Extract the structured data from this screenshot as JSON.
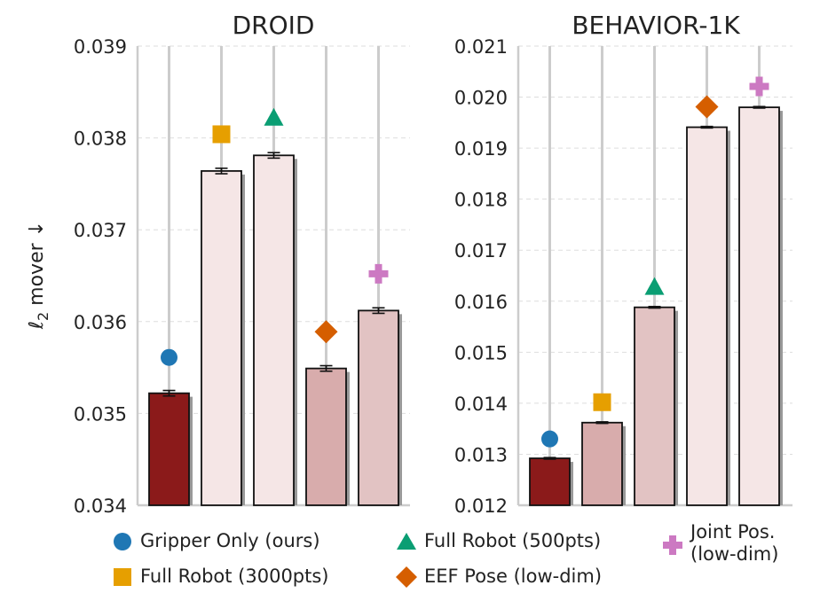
{
  "y_label_main": "mover",
  "y_label_sub": "2",
  "y_label_arrow": "↓",
  "chart_data": [
    {
      "type": "bar",
      "title": "DROID",
      "ylim": [
        0.034,
        0.039
      ],
      "yticks": [
        "0.034",
        "0.035",
        "0.036",
        "0.037",
        "0.038",
        "0.039"
      ],
      "ytick_values": [
        0.034,
        0.035,
        0.036,
        0.037,
        0.038,
        0.039
      ],
      "grid": true,
      "categories": [
        "Gripper Only (ours)",
        "Full Robot (3000pts)",
        "Full Robot (500pts)",
        "EEF Pose (low-dim)",
        "Joint Pos. (low-dim)"
      ],
      "values": [
        0.03522,
        0.03764,
        0.03781,
        0.03549,
        0.03612
      ],
      "errors": [
        3e-05,
        3e-05,
        3e-05,
        3e-05,
        3e-05
      ],
      "marker_values": [
        0.03561,
        0.03804,
        0.03822,
        0.03589,
        0.03652
      ],
      "bar_colors": [
        "#8b1a1a",
        "#f5e6e6",
        "#f5e6e6",
        "#d8acac",
        "#e2c3c3"
      ]
    },
    {
      "type": "bar",
      "title": "BEHAVIOR-1K",
      "ylim": [
        0.012,
        0.021
      ],
      "yticks": [
        "0.012",
        "0.013",
        "0.014",
        "0.015",
        "0.016",
        "0.017",
        "0.018",
        "0.019",
        "0.020",
        "0.021"
      ],
      "ytick_values": [
        0.012,
        0.013,
        0.014,
        0.015,
        0.016,
        0.017,
        0.018,
        0.019,
        0.02,
        0.021
      ],
      "grid": true,
      "categories": [
        "Gripper Only (ours)",
        "Full Robot (3000pts)",
        "Full Robot (500pts)",
        "EEF Pose (low-dim)",
        "Joint Pos. (low-dim)"
      ],
      "values": [
        0.01292,
        0.01362,
        0.01588,
        0.01941,
        0.0198
      ],
      "errors": [
        1.5e-05,
        1.5e-05,
        1.5e-05,
        1.5e-05,
        1.5e-05
      ],
      "marker_values": [
        0.0133,
        0.01402,
        0.01628,
        0.01981,
        0.02021
      ],
      "bar_colors": [
        "#8b1a1a",
        "#d8acac",
        "#e2c3c3",
        "#f5e6e6",
        "#f5e6e6"
      ]
    }
  ],
  "legend": [
    {
      "label": "Gripper Only (ours)",
      "marker": "circle",
      "color": "#1f77b4"
    },
    {
      "label": "Full Robot (500pts)",
      "marker": "triangle",
      "color": "#0a9e73"
    },
    {
      "label": "Joint Pos.\n(low-dim)",
      "marker": "plus",
      "color": "#cc79c2"
    },
    {
      "label": "Full Robot (3000pts)",
      "marker": "square",
      "color": "#e69f00"
    },
    {
      "label": "EEF Pose (low-dim)",
      "marker": "diamond",
      "color": "#d55e00"
    }
  ],
  "colors": {
    "grid": "#dddddd",
    "axis": "#cccccc",
    "stem": "#cccccc",
    "shadow": "#999999",
    "bar_edge": "#111111",
    "markers": [
      "#1f77b4",
      "#e69f00",
      "#0a9e73",
      "#d55e00",
      "#cc79c2"
    ],
    "marker_shapes": [
      "circle",
      "square",
      "triangle",
      "diamond",
      "plus"
    ]
  }
}
